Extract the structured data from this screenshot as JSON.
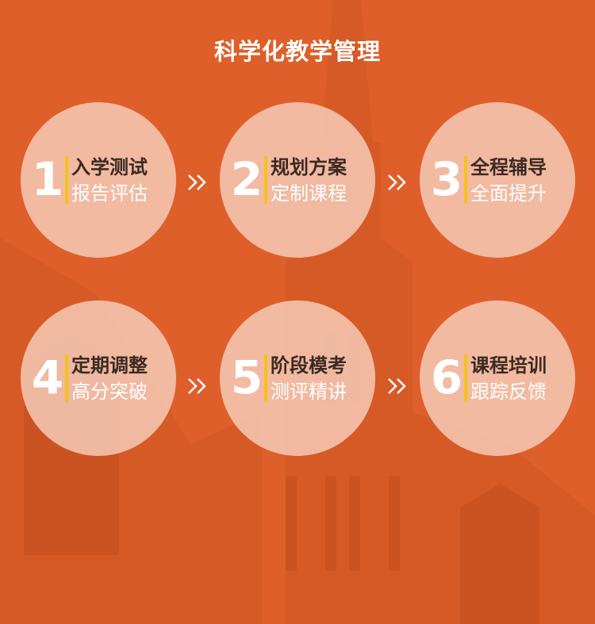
{
  "title": "科学化教学管理",
  "colors": {
    "background": "#de5f2a",
    "circle": "#f7cebc",
    "accent_bar": "#f4c21c",
    "number": "#ffffff",
    "label_primary": "#3b2a22",
    "label_secondary": "#ffffff"
  },
  "steps": [
    {
      "num": "1",
      "line1": "入学测试",
      "line2": "报告评估"
    },
    {
      "num": "2",
      "line1": "规划方案",
      "line2": "定制课程"
    },
    {
      "num": "3",
      "line1": "全程辅导",
      "line2": "全面提升"
    },
    {
      "num": "4",
      "line1": "定期调整",
      "line2": "高分突破"
    },
    {
      "num": "5",
      "line1": "阶段模考",
      "line2": "测评精讲"
    },
    {
      "num": "6",
      "line1": "课程培训",
      "line2": "跟踪反馈"
    }
  ],
  "arrow_icon": "double-chevron-right-icon"
}
